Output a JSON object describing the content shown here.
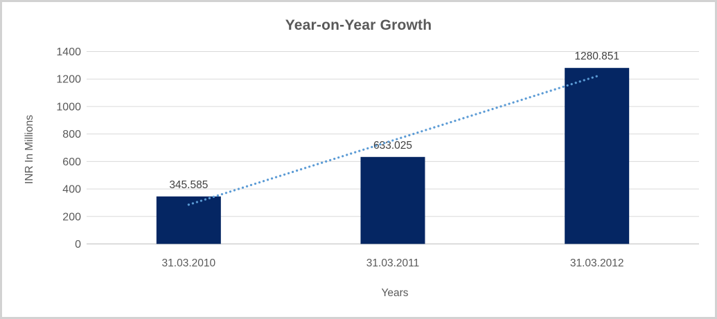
{
  "chart_data": {
    "type": "bar",
    "title": "Year-on-Year Growth",
    "xlabel": "Years",
    "ylabel": "INR In Millions",
    "categories": [
      "31.03.2010",
      "31.03.2011",
      "31.03.2012"
    ],
    "values": [
      345.585,
      633.025,
      1280.851
    ],
    "data_labels": [
      "345.585",
      "633.025",
      "1280.851"
    ],
    "y_ticks": [
      0,
      200,
      400,
      600,
      800,
      1000,
      1200,
      1400
    ],
    "ylim": [
      0,
      1400
    ],
    "grid": true,
    "legend": false,
    "trendline": {
      "type": "linear",
      "style": "dotted"
    },
    "colors": {
      "bar": "#052663",
      "trendline": "#5B9BD5",
      "gridline": "#D9D9D9",
      "axis_line": "#C9C9C9",
      "title": "#595959",
      "tick_label": "#595959",
      "data_label": "#3F3F3F"
    }
  }
}
